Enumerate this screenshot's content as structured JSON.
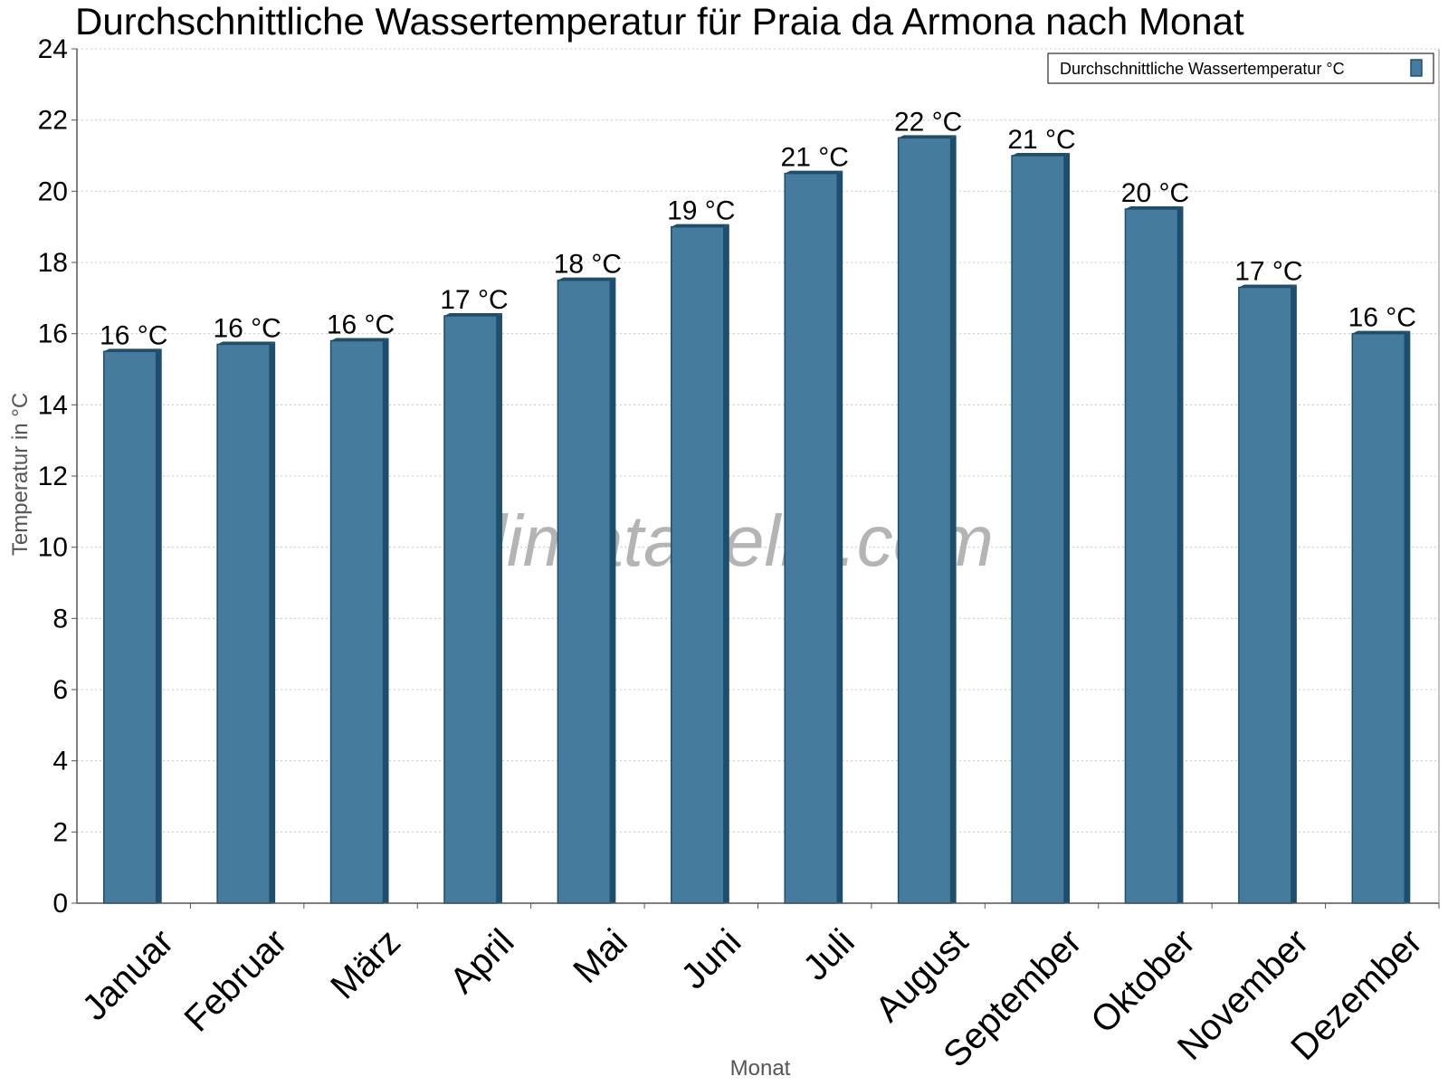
{
  "chart_data": {
    "type": "bar",
    "title": "Durchschnittliche Wassertemperatur für Praia da Armona nach Monat",
    "xlabel": "Monat",
    "ylabel": "Temperatur in °C",
    "categories": [
      "Januar",
      "Februar",
      "März",
      "April",
      "Mai",
      "Juni",
      "Juli",
      "August",
      "September",
      "Oktober",
      "November",
      "Dezember"
    ],
    "series": [
      {
        "name": "Durchschnittliche Wassertemperatur °C",
        "values": [
          15.5,
          15.7,
          15.8,
          16.5,
          17.5,
          19.0,
          20.5,
          21.5,
          21.0,
          19.5,
          17.3,
          16.0
        ],
        "data_labels": [
          "16 °C",
          "16 °C",
          "16 °C",
          "17 °C",
          "18 °C",
          "19 °C",
          "21 °C",
          "22 °C",
          "21 °C",
          "20 °C",
          "17 °C",
          "16 °C"
        ],
        "color": "#457b9d",
        "edge_color": "#1d4e6e"
      }
    ],
    "ylim": [
      0,
      24
    ],
    "yticks": [
      0,
      2,
      4,
      6,
      8,
      10,
      12,
      14,
      16,
      18,
      20,
      22,
      24
    ],
    "grid": true,
    "legend_position": "top-right",
    "watermark": "klimatabelle.com"
  }
}
